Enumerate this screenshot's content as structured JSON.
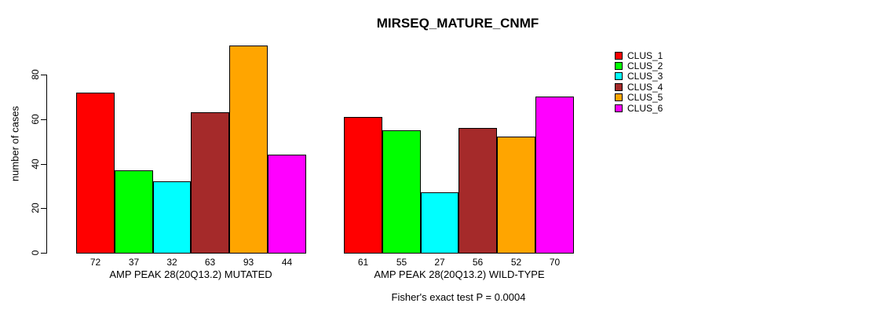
{
  "title": "MIRSEQ_MATURE_CNMF",
  "footer": "Fisher's exact test P = 0.0004",
  "y_axis": {
    "label": "number of cases",
    "ticks": [
      0,
      20,
      40,
      60,
      80
    ]
  },
  "legend": {
    "position": "right",
    "entries": [
      {
        "label": "CLUS_1",
        "color": "#FF0000"
      },
      {
        "label": "CLUS_2",
        "color": "#00FF00"
      },
      {
        "label": "CLUS_3",
        "color": "#00FFFF"
      },
      {
        "label": "CLUS_4",
        "color": "#A52A2A"
      },
      {
        "label": "CLUS_5",
        "color": "#FFA500"
      },
      {
        "label": "CLUS_6",
        "color": "#FF00FF"
      }
    ]
  },
  "chart_data": {
    "type": "bar",
    "title": "MIRSEQ_MATURE_CNMF",
    "xlabel": "",
    "ylabel": "number of cases",
    "ylim": [
      0,
      93
    ],
    "yticks": [
      0,
      20,
      40,
      60,
      80
    ],
    "grid": false,
    "legend_position": "right",
    "categories": [
      "AMP PEAK 28(20Q13.2) MUTATED",
      "AMP PEAK 28(20Q13.2) WILD-TYPE"
    ],
    "series": [
      {
        "name": "CLUS_1",
        "color": "#FF0000",
        "values": [
          72,
          61
        ]
      },
      {
        "name": "CLUS_2",
        "color": "#00FF00",
        "values": [
          37,
          55
        ]
      },
      {
        "name": "CLUS_3",
        "color": "#00FFFF",
        "values": [
          32,
          27
        ]
      },
      {
        "name": "CLUS_4",
        "color": "#A52A2A",
        "values": [
          63,
          56
        ]
      },
      {
        "name": "CLUS_5",
        "color": "#FFA500",
        "values": [
          93,
          52
        ]
      },
      {
        "name": "CLUS_6",
        "color": "#FF00FF",
        "values": [
          44,
          70
        ]
      }
    ],
    "bar_value_labels": [
      [
        72,
        37,
        32,
        63,
        93,
        44
      ],
      [
        61,
        55,
        27,
        56,
        52,
        70
      ]
    ],
    "annotation": "Fisher's exact test P = 0.0004"
  }
}
